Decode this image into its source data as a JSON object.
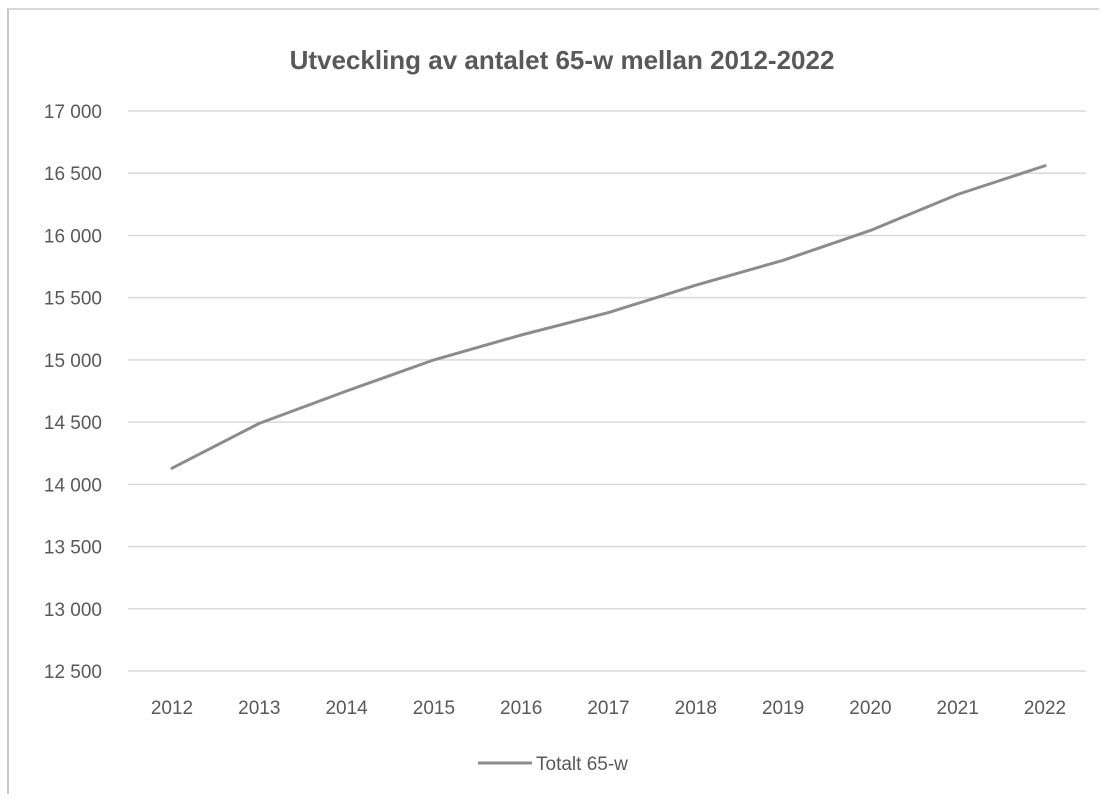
{
  "chart_data": {
    "type": "line",
    "title": "Utveckling av antalet 65-w mellan 2012-2022",
    "xlabel": "",
    "ylabel": "",
    "categories": [
      "2012",
      "2013",
      "2014",
      "2015",
      "2016",
      "2017",
      "2018",
      "2019",
      "2020",
      "2021",
      "2022"
    ],
    "series": [
      {
        "name": "Totalt 65-w",
        "values": [
          14130,
          14490,
          14750,
          15000,
          15200,
          15380,
          15600,
          15800,
          16040,
          16330,
          16560
        ]
      }
    ],
    "ylim": [
      12500,
      17000
    ],
    "yticks": [
      12500,
      13000,
      13500,
      14000,
      14500,
      15000,
      15500,
      16000,
      16500,
      17000
    ],
    "ytick_labels": [
      "12 500",
      "13 000",
      "13 500",
      "14 000",
      "14 500",
      "15 000",
      "15 500",
      "16 000",
      "16 500",
      "17 000"
    ],
    "grid": true,
    "legend_position": "bottom",
    "colors": {
      "line": "#8c8c8c",
      "grid": "#d9d9d9",
      "text": "#595959"
    }
  }
}
